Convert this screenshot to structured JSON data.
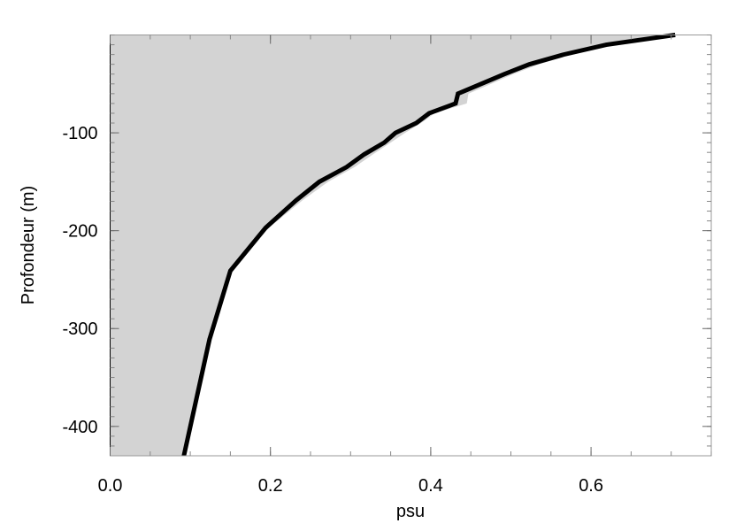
{
  "chart_data": {
    "type": "profile",
    "x_label": "psu",
    "y_label": "Profondeur (m)",
    "y": [
      0,
      -10,
      -20,
      -30,
      -40,
      -60,
      -70,
      -80,
      -90,
      -100,
      -110,
      -122,
      -135,
      -150,
      -169,
      -197,
      -241,
      -311,
      -430
    ],
    "series": [
      {
        "color": "#d3d3d3",
        "fill": true,
        "values": [
          0.705,
          0.625,
          0.575,
          0.535,
          0.503,
          0.447,
          0.445,
          0.405,
          0.388,
          0.368,
          0.35,
          0.328,
          0.305,
          0.272,
          0.24,
          0.198,
          0.152,
          0.124,
          0.092
        ]
      },
      {
        "color": "#000000",
        "fill": false,
        "values": [
          0.705,
          0.619,
          0.566,
          0.523,
          0.492,
          0.434,
          0.431,
          0.398,
          0.382,
          0.356,
          0.342,
          0.317,
          0.295,
          0.261,
          0.232,
          0.194,
          0.15,
          0.124,
          0.092
        ]
      }
    ],
    "xlim": [
      0,
      0.75
    ],
    "ylim": [
      -430,
      0
    ],
    "xticks": [
      {
        "value": 0,
        "label": "0.0"
      },
      0.2,
      0.4,
      0.6
    ],
    "yticks": [
      -100,
      -200,
      -300,
      -400
    ],
    "xticks_minor": [
      0,
      0.05,
      0.1,
      0.15,
      0.2,
      0.25,
      0.3,
      0.35,
      0.4,
      0.45,
      0.5,
      0.55,
      0.6,
      0.65,
      0.7,
      0.75
    ],
    "yticks_minor": [
      0,
      -10,
      -20,
      -30,
      -40,
      -50,
      -60,
      -70,
      -80,
      -90,
      -100,
      -110,
      -120,
      -130,
      -140,
      -150,
      -160,
      -170,
      -180,
      -190,
      -200,
      -210,
      -220,
      -230,
      -240,
      -250,
      -260,
      -270,
      -280,
      -290,
      -300,
      -310,
      -320,
      -330,
      -340,
      -350,
      -360,
      -370,
      -380,
      -390,
      -400,
      -410,
      -420
    ]
  }
}
